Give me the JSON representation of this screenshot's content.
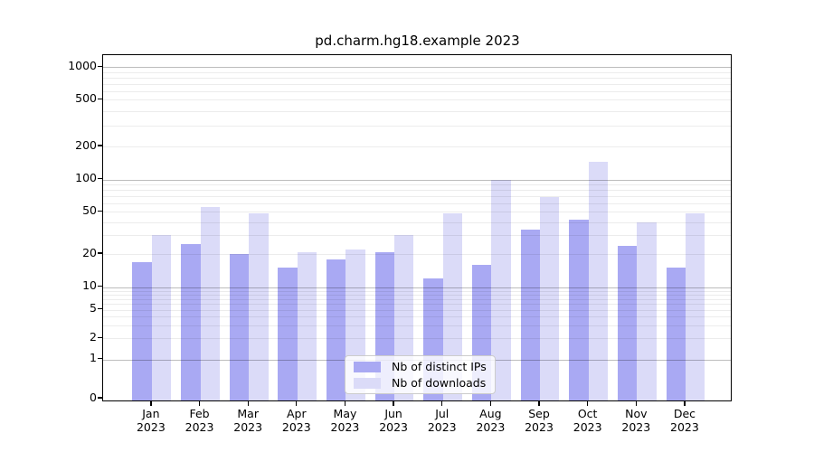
{
  "chart_data": {
    "type": "bar",
    "title": "pd.charm.hg18.example 2023",
    "categories": [
      "Jan",
      "Feb",
      "Mar",
      "Apr",
      "May",
      "Jun",
      "Jul",
      "Aug",
      "Sep",
      "Oct",
      "Nov",
      "Dec"
    ],
    "year": "2023",
    "series": [
      {
        "name": "Nb of distinct IPs",
        "color": "#a9a9f3",
        "values": [
          17,
          25,
          20,
          15,
          18,
          21,
          12,
          16,
          34,
          42,
          24,
          15
        ]
      },
      {
        "name": "Nb of downloads",
        "color": "#dbdbf8",
        "values": [
          30,
          55,
          48,
          21,
          22,
          30,
          48,
          99,
          69,
          144,
          40,
          48
        ]
      }
    ],
    "yticks": [
      0,
      1,
      2,
      5,
      10,
      20,
      50,
      100,
      200,
      500,
      1000
    ],
    "xlabel": "",
    "ylabel": "",
    "yscale": "log",
    "ylim": [
      0,
      1000
    ],
    "grid": "horizontal major+minor",
    "legend_position": "lower center"
  }
}
